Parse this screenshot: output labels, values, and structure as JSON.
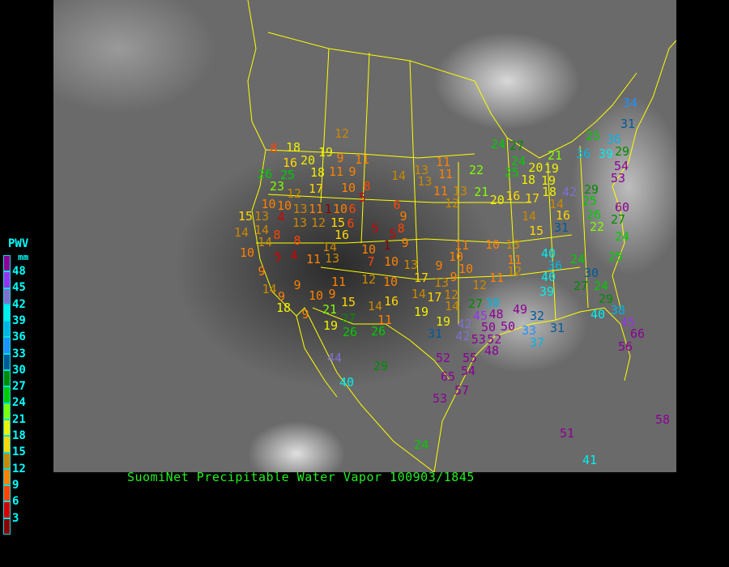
{
  "caption": "SuomiNet Precipitable Water Vapor 100903/1845",
  "legend": {
    "title": "PWV",
    "unit": "mm",
    "labels": [
      "48",
      "45",
      "42",
      "39",
      "36",
      "33",
      "30",
      "27",
      "24",
      "21",
      "18",
      "15",
      "12",
      "9",
      "6",
      "3"
    ],
    "colors": [
      "#8c0096",
      "#9632f0",
      "#8070d0",
      "#00f0f0",
      "#00b4e6",
      "#1e90ff",
      "#005a9a",
      "#008c00",
      "#00cc00",
      "#80ff00",
      "#f0f000",
      "#ffd700",
      "#cc8800",
      "#ff8000",
      "#ff4400",
      "#d40000",
      "#8b0000"
    ]
  },
  "map": {
    "background": "GOES infrared satellite image with yellow state/country boundaries",
    "stations": [
      12,
      8,
      18,
      19,
      9,
      11,
      16,
      20,
      18,
      11,
      9,
      26,
      25,
      14,
      13,
      23,
      17,
      10,
      8,
      12,
      10,
      5,
      10,
      13,
      11,
      1,
      10,
      6,
      6,
      15,
      13,
      4,
      13,
      12,
      15,
      6,
      9,
      5,
      8,
      14,
      14,
      8,
      16,
      5,
      10,
      14,
      8,
      5,
      4,
      14,
      11,
      13,
      10,
      1,
      9,
      7,
      10,
      13,
      9,
      11,
      12,
      10,
      9,
      14,
      9,
      10,
      9,
      15,
      14,
      16,
      18,
      21,
      9,
      27,
      11,
      19,
      26,
      26,
      17,
      13,
      9,
      10,
      11,
      10,
      9,
      14,
      17,
      12,
      14,
      19,
      19,
      31,
      42,
      34,
      31,
      25,
      36,
      24,
      27,
      11,
      11,
      36,
      39,
      29,
      21,
      22,
      24,
      25,
      20,
      18,
      19,
      19,
      54,
      53,
      13,
      11,
      13,
      12,
      21,
      20,
      16,
      17,
      18,
      42,
      29,
      25,
      14,
      16,
      31,
      60,
      26,
      27,
      22,
      14,
      15,
      24,
      10,
      13,
      40,
      36,
      40,
      24,
      25,
      11,
      12,
      11,
      30,
      27,
      24,
      12,
      39,
      29,
      27,
      38,
      40,
      38,
      49,
      45,
      48,
      32,
      31,
      45,
      50,
      50,
      42,
      33,
      66,
      53,
      52,
      37,
      56,
      48,
      52,
      55,
      54,
      65,
      57,
      53,
      44,
      40,
      29,
      24,
      51,
      41,
      58
    ]
  }
}
